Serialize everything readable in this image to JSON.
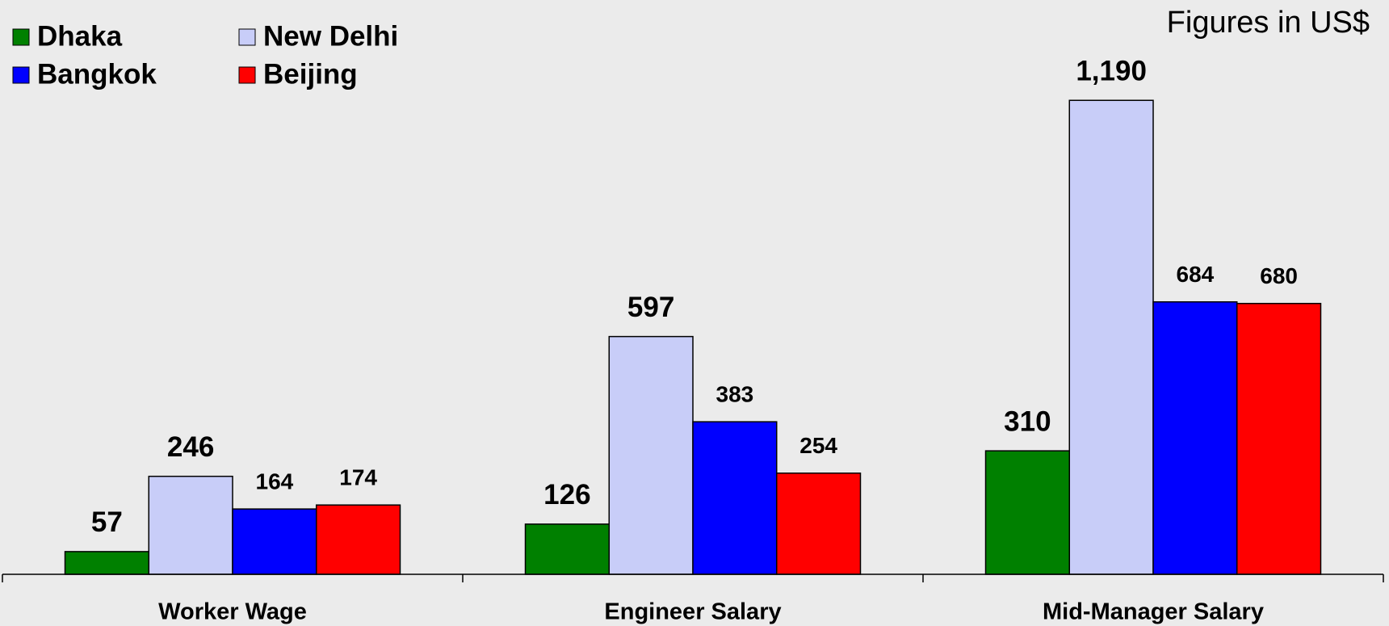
{
  "chart_data": {
    "type": "bar",
    "annotation": "Figures in US$",
    "categories": [
      "Worker Wage",
      "Engineer Salary",
      "Mid-Manager Salary"
    ],
    "series": [
      {
        "name": "Dhaka",
        "color": "#008000",
        "values": [
          57,
          126,
          310
        ],
        "value_labels": [
          "57",
          "126",
          "310"
        ]
      },
      {
        "name": "New Delhi",
        "color": "#c8cdf8",
        "values": [
          246,
          597,
          1190
        ],
        "value_labels": [
          "246",
          "597",
          "1,190"
        ]
      },
      {
        "name": "Bangkok",
        "color": "#0000ff",
        "values": [
          164,
          383,
          684
        ],
        "value_labels": [
          "164",
          "383",
          "684"
        ]
      },
      {
        "name": "Beijing",
        "color": "#ff0000",
        "values": [
          174,
          254,
          680
        ],
        "value_labels": [
          "174",
          "254",
          "680"
        ]
      }
    ],
    "ylim": [
      0,
      1300
    ]
  }
}
